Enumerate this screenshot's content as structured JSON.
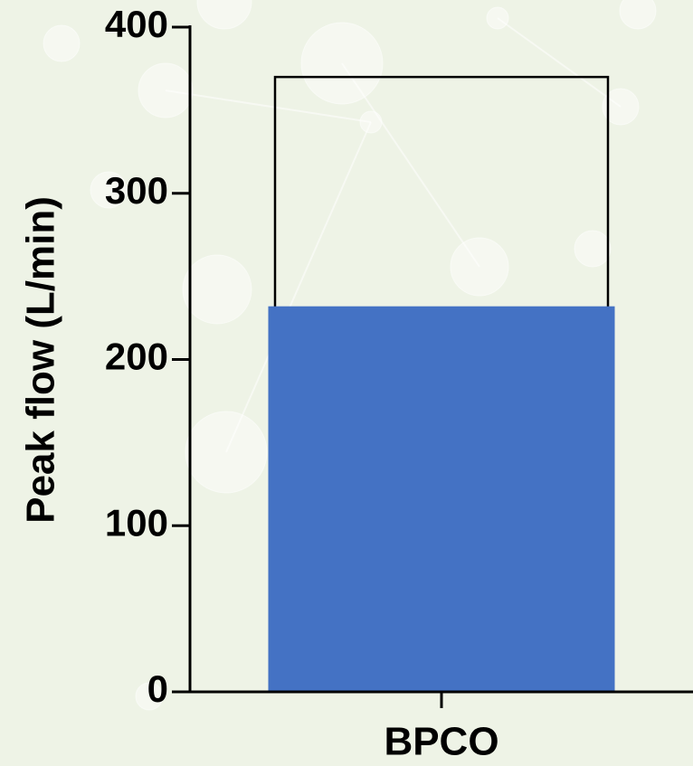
{
  "chart_data": {
    "type": "bar",
    "y_label": "Peak flow (L/min)",
    "categories": [
      "BPCO"
    ],
    "series": [
      {
        "color": "#000000",
        "filled": false,
        "values": [
          370
        ]
      },
      {
        "color": "#4472c4",
        "filled": true,
        "values": [
          232
        ]
      }
    ],
    "ylim": [
      0,
      400
    ],
    "yticks": [
      0,
      100,
      200,
      300,
      400
    ]
  }
}
